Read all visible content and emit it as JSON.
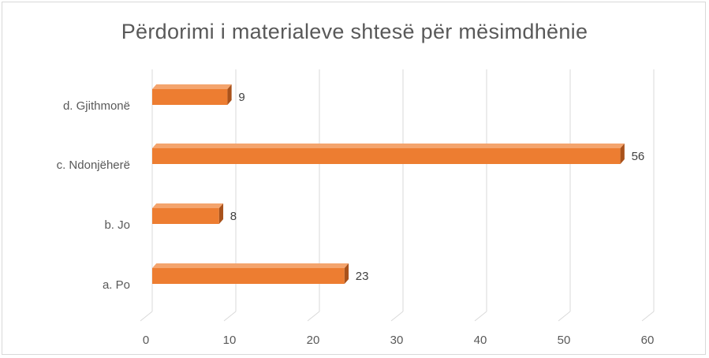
{
  "chart_data": {
    "type": "bar",
    "orientation": "horizontal",
    "title": "Përdorimi i materialeve shtesë për mësimdhënie",
    "categories": [
      "a. Po",
      "b. Jo",
      "c. Ndonjëherë",
      "d. Gjithmonë"
    ],
    "values": [
      23,
      8,
      56,
      9
    ],
    "xlim": [
      0,
      60
    ],
    "xticks": [
      0,
      10,
      20,
      30,
      40,
      50,
      60
    ],
    "xlabel": "",
    "ylabel": "",
    "grid": true,
    "data_labels": true,
    "bar_style": "3d",
    "colors": {
      "bar_front": "#ed7d31",
      "bar_top": "#f4a46d",
      "bar_side": "#a9521b",
      "grid": "#d9d9d9",
      "text": "#595959"
    }
  }
}
